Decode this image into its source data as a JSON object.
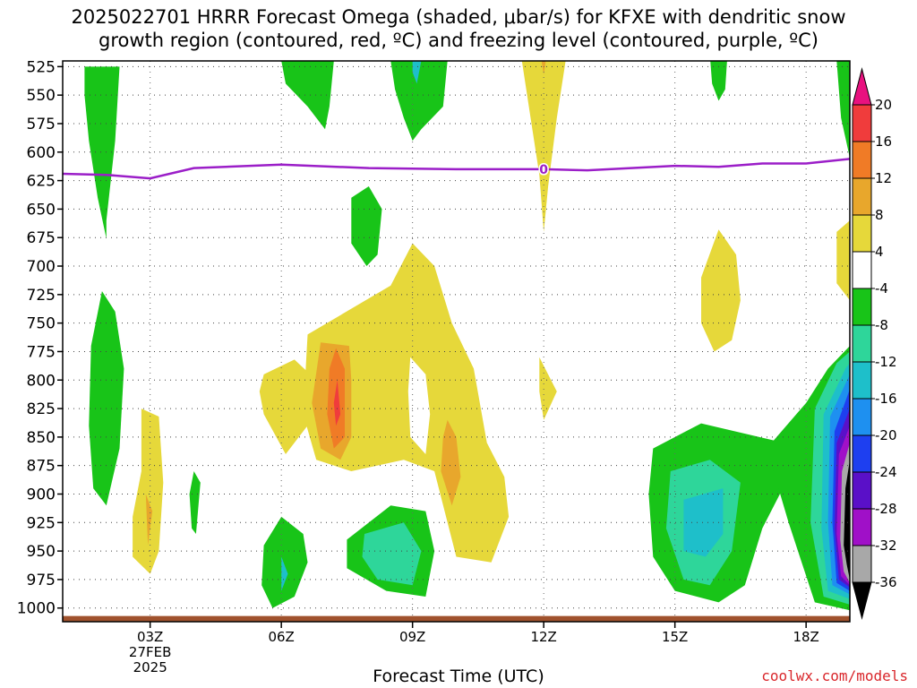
{
  "title": {
    "line1": "2025022701 HRRR Forecast Omega (shaded, μbar/s) for KFXE with dendritic snow",
    "line2": "growth region (contoured, red, ºC) and freezing level (contoured, purple, ºC)"
  },
  "credit": "coolwx.com/models",
  "chart_data": {
    "type": "heatmap",
    "xlabel": "Forecast Time (UTC)",
    "ylabel": "",
    "x_ticks": [
      {
        "hour": 3,
        "label": "03Z",
        "date_line1": "27FEB",
        "date_line2": "2025"
      },
      {
        "hour": 6,
        "label": "06Z"
      },
      {
        "hour": 9,
        "label": "09Z"
      },
      {
        "hour": 12,
        "label": "12Z"
      },
      {
        "hour": 15,
        "label": "15Z"
      },
      {
        "hour": 18,
        "label": "18Z"
      }
    ],
    "xlim": [
      1,
      19
    ],
    "ylim": [
      1012,
      520
    ],
    "y_ticks": [
      525,
      550,
      575,
      600,
      625,
      650,
      675,
      700,
      725,
      750,
      775,
      800,
      825,
      850,
      875,
      900,
      925,
      950,
      975,
      1000
    ],
    "grid": true,
    "colorbar": {
      "levels": [
        -36,
        -32,
        -28,
        -24,
        -20,
        -16,
        -12,
        -8,
        -4,
        4,
        8,
        12,
        16,
        20
      ],
      "labels": [
        "20",
        "16",
        "12",
        "8",
        "4",
        "-4",
        "-8",
        "-12",
        "-16",
        "-20",
        "-24",
        "-28",
        "-32",
        "-36"
      ],
      "colors": {
        "gt20": "#e8117f",
        "16to20": "#f03c3c",
        "12to16": "#f07b26",
        "8to12": "#e8a72c",
        "4to8": "#e6d83a",
        "m4to4": "#ffffff",
        "m8tom4": "#18c418",
        "m12tom8": "#2ed69a",
        "m16tom12": "#1ebfca",
        "m20tom16": "#1e90f0",
        "m24tom20": "#1e3ff0",
        "m28tom24": "#5a10c8",
        "m32tom28": "#a010c8",
        "m36tom32": "#a8a8a8",
        "ltm36": "#000000"
      }
    },
    "freezing_level": {
      "color": "#9b1ec8",
      "label": "0",
      "points": [
        [
          1,
          619
        ],
        [
          2,
          620
        ],
        [
          3,
          623
        ],
        [
          4,
          614
        ],
        [
          6,
          611
        ],
        [
          8,
          614
        ],
        [
          10,
          615
        ],
        [
          12,
          615
        ],
        [
          13,
          616
        ],
        [
          14,
          614
        ],
        [
          15,
          612
        ],
        [
          16,
          613
        ],
        [
          17,
          610
        ],
        [
          18,
          610
        ],
        [
          19,
          606
        ]
      ]
    },
    "surface_color": "#a0522d",
    "regions": [
      {
        "level": "m8tom4",
        "points": [
          [
            1.5,
            525
          ],
          [
            2.3,
            525
          ],
          [
            2.2,
            590
          ],
          [
            2.0,
            660
          ],
          [
            2.0,
            676
          ],
          [
            1.8,
            640
          ],
          [
            1.6,
            590
          ],
          [
            1.5,
            550
          ]
        ]
      },
      {
        "level": "m8tom4",
        "points": [
          [
            1.9,
            722
          ],
          [
            2.2,
            740
          ],
          [
            2.4,
            790
          ],
          [
            2.3,
            860
          ],
          [
            2.0,
            910
          ],
          [
            1.7,
            895
          ],
          [
            1.6,
            840
          ],
          [
            1.65,
            770
          ]
        ]
      },
      {
        "level": "m8tom4",
        "points": [
          [
            4.0,
            880
          ],
          [
            4.15,
            890
          ],
          [
            4.05,
            935
          ],
          [
            3.95,
            930
          ],
          [
            3.9,
            900
          ]
        ]
      },
      {
        "level": "m8tom4",
        "points": [
          [
            6.0,
            520
          ],
          [
            7.2,
            520
          ],
          [
            7.1,
            560
          ],
          [
            7.0,
            580
          ],
          [
            6.6,
            560
          ],
          [
            6.1,
            540
          ]
        ]
      },
      {
        "level": "m8tom4",
        "points": [
          [
            8.5,
            520
          ],
          [
            9.8,
            520
          ],
          [
            9.7,
            560
          ],
          [
            9.2,
            580
          ],
          [
            9.0,
            590
          ],
          [
            8.8,
            570
          ],
          [
            8.6,
            545
          ]
        ]
      },
      {
        "level": "m16tom12",
        "points": [
          [
            9.0,
            520
          ],
          [
            9.2,
            520
          ],
          [
            9.1,
            540
          ],
          [
            9.0,
            530
          ]
        ]
      },
      {
        "level": "4to8",
        "points": [
          [
            11.5,
            520
          ],
          [
            12.5,
            520
          ],
          [
            12.3,
            570
          ],
          [
            12.1,
            630
          ],
          [
            12.0,
            670
          ],
          [
            11.9,
            620
          ],
          [
            11.7,
            570
          ]
        ]
      },
      {
        "level": "8to12",
        "points": [
          [
            11.95,
            520
          ],
          [
            12.05,
            520
          ],
          [
            12.0,
            532
          ]
        ]
      },
      {
        "level": "m8tom4",
        "points": [
          [
            7.6,
            640
          ],
          [
            8.0,
            630
          ],
          [
            8.3,
            650
          ],
          [
            8.2,
            690
          ],
          [
            7.95,
            700
          ],
          [
            7.6,
            680
          ]
        ]
      },
      {
        "level": "m8tom4",
        "points": [
          [
            15.8,
            515
          ],
          [
            16.2,
            515
          ],
          [
            16.15,
            545
          ],
          [
            16.0,
            555
          ],
          [
            15.85,
            540
          ]
        ]
      },
      {
        "level": "m8tom4",
        "points": [
          [
            18.7,
            520
          ],
          [
            19,
            520
          ],
          [
            19,
            605
          ],
          [
            18.8,
            570
          ]
        ]
      },
      {
        "level": "4to8",
        "points": [
          [
            18.7,
            670
          ],
          [
            19,
            660
          ],
          [
            19,
            730
          ],
          [
            18.7,
            715
          ]
        ]
      },
      {
        "level": "4to8",
        "points": [
          [
            16.0,
            668
          ],
          [
            16.4,
            690
          ],
          [
            16.5,
            730
          ],
          [
            16.3,
            765
          ],
          [
            15.9,
            775
          ],
          [
            15.6,
            750
          ],
          [
            15.6,
            710
          ]
        ]
      },
      {
        "level": "4to8",
        "points": [
          [
            5.6,
            795
          ],
          [
            6.3,
            782
          ],
          [
            6.8,
            800
          ],
          [
            6.8,
            830
          ],
          [
            6.1,
            865
          ],
          [
            5.6,
            830
          ],
          [
            5.5,
            810
          ]
        ]
      },
      {
        "level": "4to8",
        "points": [
          [
            2.8,
            825
          ],
          [
            3.2,
            832
          ],
          [
            3.3,
            890
          ],
          [
            3.2,
            950
          ],
          [
            3.0,
            970
          ],
          [
            2.6,
            955
          ],
          [
            2.6,
            920
          ],
          [
            2.8,
            880
          ]
        ]
      },
      {
        "level": "8to12",
        "points": [
          [
            2.9,
            900
          ],
          [
            3.05,
            915
          ],
          [
            2.95,
            945
          ]
        ]
      },
      {
        "level": "4to8",
        "points": [
          [
            8.5,
            717
          ],
          [
            9.0,
            680
          ],
          [
            9.5,
            700
          ],
          [
            9.9,
            750
          ],
          [
            10.4,
            790
          ],
          [
            10.7,
            855
          ],
          [
            11.1,
            885
          ],
          [
            11.2,
            920
          ],
          [
            10.8,
            960
          ],
          [
            10.0,
            955
          ],
          [
            9.5,
            880
          ],
          [
            8.8,
            870
          ],
          [
            7.6,
            880
          ],
          [
            6.8,
            870
          ],
          [
            6.5,
            830
          ],
          [
            6.6,
            760
          ]
        ]
      },
      {
        "level": "m4to4",
        "points": [
          [
            8.95,
            780
          ],
          [
            9.3,
            795
          ],
          [
            9.4,
            830
          ],
          [
            9.3,
            865
          ],
          [
            8.95,
            850
          ],
          [
            8.9,
            810
          ]
        ]
      },
      {
        "level": "8to12",
        "points": [
          [
            6.9,
            767
          ],
          [
            7.55,
            770
          ],
          [
            7.6,
            800
          ],
          [
            7.6,
            850
          ],
          [
            7.35,
            870
          ],
          [
            6.9,
            860
          ],
          [
            6.7,
            820
          ]
        ]
      },
      {
        "level": "12to16",
        "points": [
          [
            7.25,
            772
          ],
          [
            7.45,
            790
          ],
          [
            7.45,
            850
          ],
          [
            7.2,
            860
          ],
          [
            7.05,
            830
          ],
          [
            7.1,
            790
          ]
        ]
      },
      {
        "level": "16to20",
        "points": [
          [
            7.28,
            800
          ],
          [
            7.35,
            830
          ],
          [
            7.25,
            840
          ],
          [
            7.2,
            820
          ]
        ]
      },
      {
        "level": "8to12",
        "points": [
          [
            9.8,
            835
          ],
          [
            10.0,
            850
          ],
          [
            10.1,
            885
          ],
          [
            9.9,
            910
          ],
          [
            9.65,
            880
          ],
          [
            9.7,
            850
          ]
        ]
      },
      {
        "level": "4to8",
        "points": [
          [
            11.9,
            780
          ],
          [
            12.3,
            810
          ],
          [
            12.0,
            835
          ],
          [
            11.9,
            810
          ]
        ]
      },
      {
        "level": "m8tom4",
        "points": [
          [
            7.5,
            940
          ],
          [
            8.5,
            910
          ],
          [
            9.3,
            915
          ],
          [
            9.5,
            950
          ],
          [
            9.3,
            990
          ],
          [
            8.4,
            985
          ],
          [
            7.5,
            965
          ]
        ]
      },
      {
        "level": "m12tom8",
        "points": [
          [
            7.9,
            935
          ],
          [
            8.8,
            925
          ],
          [
            9.2,
            950
          ],
          [
            9.0,
            980
          ],
          [
            8.2,
            975
          ],
          [
            7.85,
            955
          ]
        ]
      },
      {
        "level": "m8tom4",
        "points": [
          [
            5.6,
            945
          ],
          [
            6.0,
            920
          ],
          [
            6.5,
            935
          ],
          [
            6.6,
            960
          ],
          [
            6.3,
            990
          ],
          [
            5.8,
            1000
          ],
          [
            5.55,
            980
          ]
        ]
      },
      {
        "level": "m16tom12",
        "points": [
          [
            6.0,
            955
          ],
          [
            6.15,
            970
          ],
          [
            6.0,
            985
          ]
        ]
      },
      {
        "level": "m8tom4",
        "points": [
          [
            14.5,
            860
          ],
          [
            15.6,
            838
          ],
          [
            17.6,
            856
          ],
          [
            17.4,
            900
          ],
          [
            17.0,
            930
          ],
          [
            16.6,
            980
          ],
          [
            16.0,
            995
          ],
          [
            15.0,
            985
          ],
          [
            14.5,
            955
          ],
          [
            14.4,
            900
          ]
        ]
      },
      {
        "level": "m12tom8",
        "points": [
          [
            14.9,
            880
          ],
          [
            15.8,
            870
          ],
          [
            16.5,
            890
          ],
          [
            16.3,
            950
          ],
          [
            15.8,
            980
          ],
          [
            15.2,
            975
          ],
          [
            14.8,
            930
          ]
        ]
      },
      {
        "level": "m16tom12",
        "points": [
          [
            15.2,
            905
          ],
          [
            16.1,
            895
          ],
          [
            16.1,
            935
          ],
          [
            15.7,
            955
          ],
          [
            15.2,
            950
          ]
        ]
      },
      {
        "level": "m8tom4",
        "points": [
          [
            17.1,
            860
          ],
          [
            18.0,
            820
          ],
          [
            18.5,
            790
          ],
          [
            19,
            770
          ],
          [
            19,
            1002
          ],
          [
            18.2,
            995
          ],
          [
            17.6,
            925
          ]
        ]
      },
      {
        "level": "m12tom8",
        "points": [
          [
            18.2,
            825
          ],
          [
            18.7,
            785
          ],
          [
            19,
            775
          ],
          [
            19,
            997
          ],
          [
            18.4,
            990
          ],
          [
            18.1,
            925
          ]
        ]
      },
      {
        "level": "m16tom12",
        "points": [
          [
            18.4,
            830
          ],
          [
            18.9,
            790
          ],
          [
            19,
            785
          ],
          [
            19,
            992
          ],
          [
            18.5,
            985
          ],
          [
            18.35,
            930
          ]
        ]
      },
      {
        "level": "m20tom16",
        "points": [
          [
            18.55,
            832
          ],
          [
            19,
            795
          ],
          [
            19,
            988
          ],
          [
            18.6,
            980
          ],
          [
            18.5,
            925
          ]
        ]
      },
      {
        "level": "m24tom20",
        "points": [
          [
            18.65,
            845
          ],
          [
            19,
            808
          ],
          [
            19,
            985
          ],
          [
            18.7,
            978
          ],
          [
            18.6,
            925
          ]
        ]
      },
      {
        "level": "m28tom24",
        "points": [
          [
            18.7,
            855
          ],
          [
            19,
            825
          ],
          [
            19,
            982
          ],
          [
            18.75,
            975
          ],
          [
            18.65,
            930
          ]
        ]
      },
      {
        "level": "m32tom28",
        "points": [
          [
            18.75,
            865
          ],
          [
            19,
            840
          ],
          [
            19,
            980
          ],
          [
            18.8,
            972
          ],
          [
            18.7,
            935
          ]
        ]
      },
      {
        "level": "m36tom32",
        "points": [
          [
            18.82,
            880
          ],
          [
            19,
            855
          ],
          [
            19,
            978
          ],
          [
            18.86,
            968
          ],
          [
            18.78,
            940
          ]
        ]
      },
      {
        "level": "ltm36",
        "points": [
          [
            18.9,
            895
          ],
          [
            19,
            870
          ],
          [
            19,
            975
          ],
          [
            18.93,
            962
          ],
          [
            18.86,
            945
          ]
        ]
      }
    ]
  }
}
